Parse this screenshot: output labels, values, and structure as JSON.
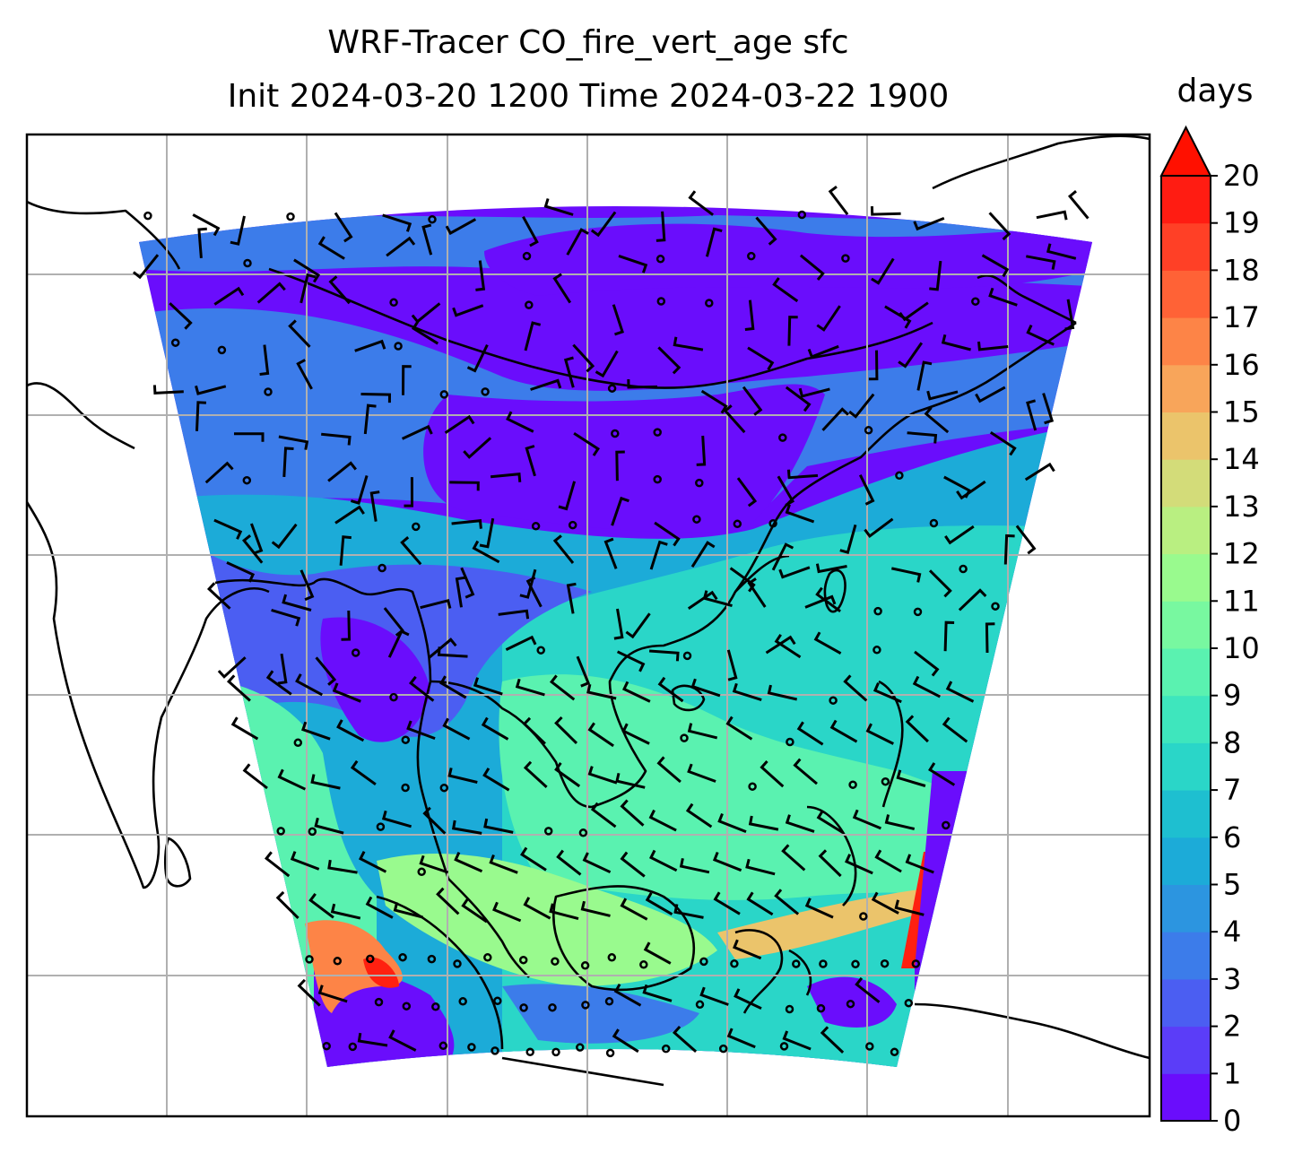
{
  "chart_data": {
    "type": "heatmap",
    "title": "WRF-Tracer CO_fire_vert_age sfc",
    "subtitle": "Init 2024-03-20 1200 Time 2024-03-22 1900",
    "colorbar": {
      "label": "days",
      "ticks": [
        "0",
        "1",
        "2",
        "3",
        "4",
        "5",
        "6",
        "7",
        "8",
        "9",
        "10",
        "11",
        "12",
        "13",
        "14",
        "15",
        "16",
        "17",
        "18",
        "19",
        "20"
      ],
      "range": [
        0,
        20
      ],
      "extend": "max",
      "colors": [
        "#6a0dfc",
        "#5b3df8",
        "#4b5ef2",
        "#3c7cea",
        "#2c95e0",
        "#1cabd8",
        "#1ebfd0",
        "#2ad6c8",
        "#3ee6bd",
        "#5af2b0",
        "#78f8a0",
        "#99fa8e",
        "#b9ef81",
        "#d3dc79",
        "#ebc46b",
        "#f8a55a",
        "#fd8447",
        "#ff6236",
        "#ff4026",
        "#ff1c12"
      ],
      "extend_color": "#ff1000"
    },
    "map": {
      "region": "Southeast Asia / South China Sea",
      "gridlines": true,
      "overlay": "surface wind barbs and calm-wind circles over tracer age field"
    }
  }
}
